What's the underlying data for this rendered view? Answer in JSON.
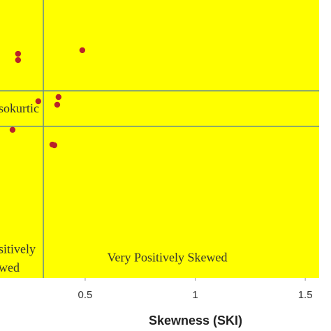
{
  "chart_data": {
    "type": "scatter",
    "x_label": "Skewness (SKI)",
    "x": [
      0.195,
      0.195,
      0.487,
      0.287,
      0.379,
      0.373,
      0.17,
      0.351,
      0.36
    ],
    "y": [
      1.328,
      1.291,
      1.349,
      1.048,
      1.073,
      1.028,
      0.88,
      0.793,
      0.789
    ],
    "color": "#b8232a",
    "background": "#ffff00",
    "xlim": [
      0.113,
      1.563
    ],
    "ylim": [
      0.007,
      1.645
    ],
    "xticks": [
      0.5,
      1,
      1.5
    ],
    "vlines": [
      0.31
    ],
    "hlines": [
      1.11,
      0.9
    ],
    "line_color": "#6a8f8c",
    "annotations": [
      {
        "text": "sokurtic",
        "x": 0.113,
        "y": 1.0
      },
      {
        "text": "sitively",
        "x": 0.113,
        "y": 0.17
      },
      {
        "text": "wed",
        "x": 0.113,
        "y": 0.06
      },
      {
        "text": "Very Positively Skewed",
        "x": 0.6,
        "y": 0.12
      }
    ]
  }
}
